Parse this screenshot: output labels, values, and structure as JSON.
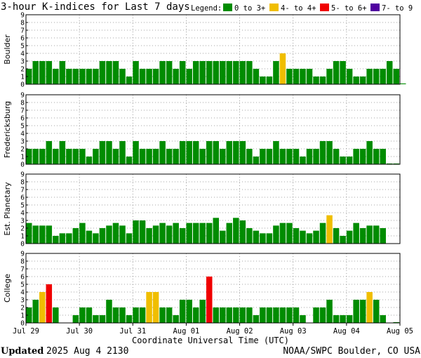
{
  "title": "3-hour K-indices for Last 7 days",
  "legend": {
    "label": "Legend:",
    "items": [
      {
        "label": "0 to 3+",
        "color": "#008C00"
      },
      {
        "label": "4- to 4+",
        "color": "#F0BE00"
      },
      {
        "label": "5- to 6+",
        "color": "#F00000"
      },
      {
        "label": "7- to 9",
        "color": "#5000A0"
      }
    ]
  },
  "footer": {
    "updated_label": "Updated",
    "updated_value": "2025 Aug  4 2130",
    "source": "NOAA/SWPC Boulder, CO USA"
  },
  "chart_data": {
    "type": "bar",
    "xlabel": "Coordinate Universal Time (UTC)",
    "x_ticks": [
      "Jul 29",
      "Jul 30",
      "Jul 31",
      "Aug 01",
      "Aug 02",
      "Aug 03",
      "Aug 04",
      "Aug 05"
    ],
    "y_ticks": [
      "0",
      "1",
      "2",
      "3",
      "4",
      "5",
      "6",
      "7",
      "8",
      "9"
    ],
    "ylim": [
      0,
      9
    ],
    "bars_per_day": 8,
    "grid": true,
    "panels": [
      {
        "name": "Boulder",
        "values": [
          2,
          3,
          3,
          3,
          2,
          3,
          2,
          2,
          2,
          2,
          2,
          3,
          3,
          3,
          2,
          1,
          3,
          2,
          2,
          2,
          3,
          3,
          2,
          3,
          2,
          3,
          3,
          3,
          3,
          3,
          3,
          3,
          3,
          3,
          2,
          1,
          1,
          3,
          4,
          2,
          2,
          2,
          2,
          1,
          1,
          2,
          3,
          3,
          2,
          1,
          1,
          2,
          2,
          2,
          3,
          2,
          0.1
        ]
      },
      {
        "name": "Fredericksburg",
        "values": [
          2,
          2,
          2,
          3,
          2,
          3,
          2,
          2,
          2,
          1,
          2,
          3,
          3,
          2,
          3,
          1,
          3,
          2,
          2,
          2,
          3,
          2,
          2,
          3,
          3,
          3,
          2,
          3,
          3,
          2,
          3,
          3,
          3,
          2,
          1,
          2,
          2,
          3,
          2,
          2,
          2,
          1,
          2,
          2,
          3,
          3,
          2,
          1,
          1,
          2,
          2,
          3,
          2,
          2,
          0.1,
          0.1
        ]
      },
      {
        "name": "Est. Planetary",
        "values": [
          2.67,
          2.33,
          2.33,
          2.33,
          1,
          1.33,
          1.33,
          2,
          2.67,
          1.67,
          1.33,
          2,
          2.33,
          2.67,
          2.33,
          1.33,
          3,
          3,
          2,
          2.33,
          2.67,
          2.33,
          2.67,
          2,
          2.67,
          2.67,
          2.67,
          2.67,
          3.33,
          1.67,
          2.67,
          3.33,
          3,
          2,
          1.67,
          1.33,
          1.33,
          2.33,
          2.67,
          2.67,
          2,
          1.67,
          1.33,
          1.67,
          2.67,
          3.67,
          2,
          1,
          1.67,
          2.67,
          2,
          2.33,
          2.33,
          2
        ]
      },
      {
        "name": "College",
        "values": [
          2,
          3,
          4,
          5,
          2,
          0,
          0,
          1,
          2,
          2,
          1,
          1,
          3,
          2,
          2,
          1,
          2,
          2,
          4,
          4,
          2,
          2,
          1,
          3,
          3,
          2,
          3,
          6,
          2,
          2,
          2,
          2,
          2,
          2,
          1,
          2,
          2,
          2,
          2,
          2,
          2,
          1,
          0,
          2,
          2,
          3,
          1,
          1,
          1,
          3,
          3,
          4,
          3,
          1,
          0,
          0.1
        ]
      }
    ]
  }
}
